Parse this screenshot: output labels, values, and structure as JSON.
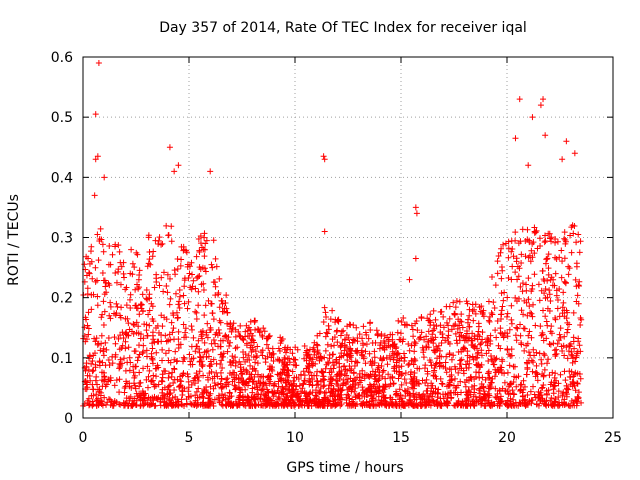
{
  "chart_data": {
    "type": "scatter",
    "title": "Day 357 of 2014, Rate Of TEC Index for receiver iqal",
    "xlabel": "GPS time / hours",
    "ylabel": "ROTI / TECUs",
    "xlim": [
      0,
      25
    ],
    "ylim": [
      0,
      0.6
    ],
    "xticks": [
      0,
      5,
      10,
      15,
      20,
      25
    ],
    "yticks": [
      0,
      0.1,
      0.2,
      0.3,
      0.4,
      0.5,
      0.6
    ],
    "xtick_labels": [
      "0",
      "5",
      "10",
      "15",
      "20",
      "25"
    ],
    "ytick_labels": [
      "0",
      "0.1",
      "0.2",
      "0.3",
      "0.4",
      "0.5",
      "0.6"
    ],
    "grid": true,
    "marker": "+",
    "color": "#ff0000",
    "series": [
      {
        "name": "ROTI",
        "envelope_x": [
          0,
          0.5,
          1,
          1.5,
          2,
          2.5,
          3,
          3.5,
          4,
          4.5,
          5,
          5.5,
          6,
          6.5,
          7,
          7.5,
          8,
          8.5,
          9,
          9.5,
          10,
          10.5,
          11,
          11.5,
          12,
          12.5,
          13,
          13.5,
          14,
          14.5,
          15,
          15.5,
          16,
          16.5,
          17,
          17.5,
          18,
          18.5,
          19,
          19.5,
          20,
          20.5,
          21,
          21.5,
          22,
          22.5,
          23,
          23.5
        ],
        "envelope_y": [
          0.27,
          0.3,
          0.33,
          0.3,
          0.28,
          0.28,
          0.3,
          0.32,
          0.33,
          0.3,
          0.27,
          0.3,
          0.33,
          0.24,
          0.17,
          0.16,
          0.17,
          0.15,
          0.14,
          0.13,
          0.12,
          0.12,
          0.13,
          0.2,
          0.17,
          0.16,
          0.15,
          0.16,
          0.15,
          0.14,
          0.17,
          0.16,
          0.17,
          0.18,
          0.18,
          0.2,
          0.2,
          0.19,
          0.19,
          0.27,
          0.3,
          0.33,
          0.33,
          0.32,
          0.33,
          0.3,
          0.33,
          0.31
        ],
        "outliers": [
          {
            "x": 0.75,
            "y": 0.59
          },
          {
            "x": 0.6,
            "y": 0.505
          },
          {
            "x": 0.7,
            "y": 0.435
          },
          {
            "x": 0.6,
            "y": 0.43
          },
          {
            "x": 1.0,
            "y": 0.4
          },
          {
            "x": 0.55,
            "y": 0.37
          },
          {
            "x": 4.1,
            "y": 0.45
          },
          {
            "x": 4.5,
            "y": 0.42
          },
          {
            "x": 4.3,
            "y": 0.41
          },
          {
            "x": 6.0,
            "y": 0.41
          },
          {
            "x": 11.35,
            "y": 0.435
          },
          {
            "x": 11.4,
            "y": 0.43
          },
          {
            "x": 11.4,
            "y": 0.31
          },
          {
            "x": 15.7,
            "y": 0.35
          },
          {
            "x": 15.75,
            "y": 0.34
          },
          {
            "x": 15.4,
            "y": 0.23
          },
          {
            "x": 15.7,
            "y": 0.265
          },
          {
            "x": 20.6,
            "y": 0.53
          },
          {
            "x": 21.7,
            "y": 0.53
          },
          {
            "x": 21.6,
            "y": 0.52
          },
          {
            "x": 21.2,
            "y": 0.5
          },
          {
            "x": 20.4,
            "y": 0.465
          },
          {
            "x": 21.8,
            "y": 0.47
          },
          {
            "x": 22.8,
            "y": 0.46
          },
          {
            "x": 23.2,
            "y": 0.44
          },
          {
            "x": 22.6,
            "y": 0.43
          },
          {
            "x": 21.0,
            "y": 0.42
          }
        ]
      }
    ]
  }
}
